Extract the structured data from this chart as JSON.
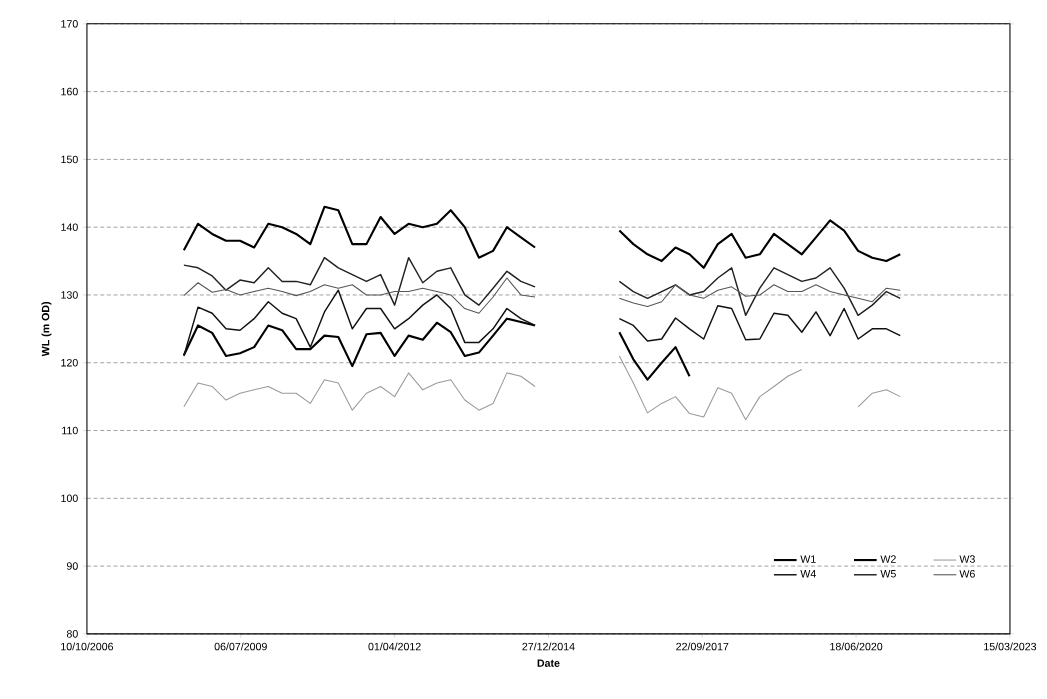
{
  "chart_data": {
    "type": "line",
    "xlabel": "Date",
    "ylabel": "WL (m OD)",
    "x": [
      "2008-07",
      "2008-10",
      "2009-01",
      "2009-04",
      "2009-07",
      "2009-10",
      "2010-01",
      "2010-04",
      "2010-07",
      "2010-10",
      "2011-01",
      "2011-04",
      "2011-07",
      "2011-10",
      "2012-01",
      "2012-04",
      "2012-07",
      "2012-10",
      "2013-01",
      "2013-04",
      "2013-07",
      "2013-10",
      "2014-01",
      "2014-04",
      "2014-07",
      "2014-10",
      "2015-01",
      "2015-04",
      "2015-07",
      "2015-10",
      "2016-01",
      "2016-04",
      "2016-07",
      "2016-10",
      "2017-01",
      "2017-04",
      "2017-07",
      "2017-10",
      "2018-01",
      "2018-04",
      "2018-07",
      "2018-10",
      "2019-01",
      "2019-04",
      "2019-07",
      "2019-10",
      "2020-01",
      "2020-04",
      "2020-07",
      "2020-10",
      "2021-01",
      "2021-04"
    ],
    "series": [
      {
        "name": "W1",
        "color": "#000000",
        "values": [
          136.6,
          140.5,
          139,
          138,
          138,
          137,
          140.5,
          140,
          139,
          137.5,
          143,
          142.5,
          137.5,
          137.5,
          141.5,
          139,
          140.5,
          140,
          140.5,
          142.5,
          140,
          135.5,
          136.5,
          140,
          138.5,
          137,
          null,
          null,
          null,
          null,
          null,
          139.5,
          137.5,
          136,
          135,
          137,
          136,
          134,
          137.5,
          139,
          135.5,
          136,
          139,
          137.5,
          136,
          138.5,
          141,
          139.5,
          136.5,
          135.5,
          135,
          136
        ]
      },
      {
        "name": "W2",
        "color": "#000000",
        "values": [
          121.1,
          125.5,
          124.4,
          121,
          121.4,
          122.3,
          125.5,
          124.8,
          122,
          122,
          124,
          123.8,
          119.5,
          124.2,
          124.4,
          121,
          124,
          123.4,
          125.9,
          124.5,
          121,
          121.5,
          124,
          126.5,
          126,
          125.5,
          null,
          null,
          null,
          null,
          null,
          124.5,
          120.5,
          117.5,
          120,
          122.3,
          118,
          null,
          null,
          null,
          null,
          null,
          null,
          null,
          null,
          null,
          null,
          null,
          null,
          null,
          null,
          null
        ]
      },
      {
        "name": "W3",
        "color": "#9a9a9a",
        "values": [
          113.5,
          117,
          116.5,
          114.5,
          115.5,
          116,
          116.5,
          115.5,
          115.5,
          114,
          117.5,
          117,
          113,
          115.5,
          116.5,
          115,
          118.5,
          116,
          117,
          117.5,
          114.5,
          113,
          114,
          118.5,
          118,
          116.5,
          null,
          null,
          null,
          null,
          null,
          121,
          117,
          112.6,
          114,
          115,
          112.5,
          112,
          116.3,
          115.5,
          111.6,
          115,
          116.5,
          118,
          119,
          null,
          null,
          null,
          113.5,
          115.5,
          116,
          115
        ]
      },
      {
        "name": "W4",
        "color": "#111111",
        "values": [
          121,
          128.2,
          127.3,
          125,
          124.8,
          126.5,
          129,
          127.3,
          126.5,
          122.3,
          127.5,
          130.7,
          125,
          128,
          128,
          125,
          126.5,
          128.5,
          130,
          128,
          123,
          123,
          125,
          128,
          126.5,
          125.5,
          null,
          null,
          null,
          null,
          null,
          126.5,
          125.5,
          123.2,
          123.5,
          126.6,
          125,
          123.5,
          128.4,
          128,
          123.4,
          123.5,
          127.3,
          127,
          124.5,
          127.5,
          124,
          128,
          123.5,
          125,
          125,
          124
        ]
      },
      {
        "name": "W5",
        "color": "#222222",
        "values": [
          134.4,
          134,
          132.8,
          130.7,
          132.2,
          131.8,
          134,
          132,
          132,
          131.5,
          135.5,
          134,
          133,
          132,
          133,
          128.5,
          135.5,
          131.8,
          133.5,
          134,
          130,
          128.5,
          131,
          133.5,
          132,
          131.2,
          null,
          null,
          null,
          null,
          null,
          132,
          130.5,
          129.5,
          130.5,
          131.5,
          130,
          130.5,
          132.5,
          134,
          127,
          131,
          134,
          133,
          132,
          132.5,
          134,
          131,
          127,
          128.5,
          130.5,
          129.5
        ]
      },
      {
        "name": "W6",
        "color": "#555555",
        "values": [
          129.9,
          131.8,
          130.4,
          130.8,
          130,
          130.5,
          131,
          130.5,
          129.9,
          130.5,
          131.5,
          131,
          131.5,
          130,
          130,
          130.5,
          130.5,
          131,
          130.5,
          130,
          128,
          127.3,
          129.7,
          132.5,
          130,
          129.7,
          null,
          null,
          null,
          null,
          null,
          129.5,
          128.8,
          128.3,
          129,
          131.5,
          130,
          129.5,
          130.7,
          131.2,
          129.8,
          130,
          131.5,
          130.5,
          130.5,
          131.5,
          130.5,
          130,
          129.5,
          129,
          131,
          130.7
        ]
      }
    ],
    "xlim": [
      "2006-10-10",
      "2023-03-15"
    ],
    "xticks": [
      {
        "value": "2006-10-10",
        "label": "10/10/2006"
      },
      {
        "value": "2009-07-06",
        "label": "06/07/2009"
      },
      {
        "value": "2012-04-01",
        "label": "01/04/2012"
      },
      {
        "value": "2014-12-27",
        "label": "27/12/2014"
      },
      {
        "value": "2017-09-22",
        "label": "22/09/2017"
      },
      {
        "value": "2020-06-18",
        "label": "18/06/2020"
      },
      {
        "value": "2023-03-15",
        "label": "15/03/2023"
      }
    ],
    "ylim": [
      80,
      170
    ],
    "yticks": [
      80,
      90,
      100,
      110,
      120,
      130,
      140,
      150,
      160,
      170
    ],
    "grid": "y",
    "legend": "bottom right",
    "marker": "none",
    "line_style": "solid"
  }
}
